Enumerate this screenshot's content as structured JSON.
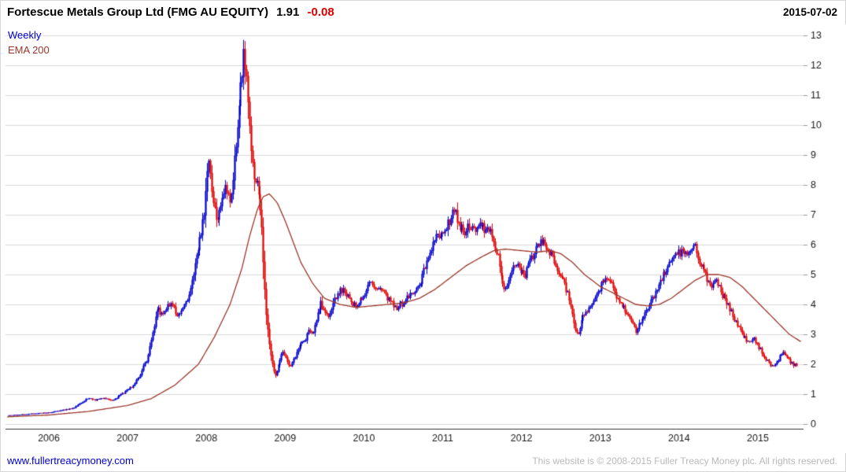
{
  "header": {
    "title": "Fortescue Metals Group Ltd (FMG AU EQUITY)",
    "last_price": "1.91",
    "change": "-0.08",
    "date": "2015-07-02"
  },
  "legend": {
    "series1": "Weekly",
    "series2": "EMA 200"
  },
  "footer": {
    "link": "www.fullertreacymoney.com",
    "copyright": "This website is © 2008-2015 Fuller Treacy Money plc. All rights reserved."
  },
  "colors": {
    "up": "#0000cc",
    "down": "#e00000",
    "ema": "#9a382a",
    "grid": "#d9d9d9",
    "axis": "#333333",
    "tick": "#999999",
    "label": "#1a1a1a"
  },
  "chart_data": {
    "type": "candlestick",
    "title": "Fortescue Metals Group Ltd (FMG AU EQUITY)",
    "frequency": "Weekly",
    "overlay": "EMA 200",
    "last_price": 1.91,
    "change": -0.08,
    "date": "2015-07-02",
    "grid": "horizontal",
    "legend_position": "top-left",
    "axis_labels_position": "right",
    "xlim": [
      2005.45,
      2015.58
    ],
    "ylim": [
      0,
      13
    ],
    "yticks": [
      0,
      1,
      2,
      3,
      4,
      5,
      6,
      7,
      8,
      9,
      10,
      11,
      12,
      13
    ],
    "xticks": [
      2006,
      2007,
      2008,
      2009,
      2010,
      2011,
      2012,
      2013,
      2014,
      2015
    ],
    "series": [
      {
        "name": "Weekly price (approx close keypoints, [year, price])",
        "keypoints": [
          [
            2005.47,
            0.28
          ],
          [
            2005.6,
            0.3
          ],
          [
            2005.75,
            0.33
          ],
          [
            2005.9,
            0.36
          ],
          [
            2006.0,
            0.38
          ],
          [
            2006.15,
            0.45
          ],
          [
            2006.3,
            0.52
          ],
          [
            2006.42,
            0.72
          ],
          [
            2006.5,
            0.88
          ],
          [
            2006.58,
            0.8
          ],
          [
            2006.7,
            0.85
          ],
          [
            2006.8,
            0.78
          ],
          [
            2006.95,
            1.05
          ],
          [
            2007.05,
            1.25
          ],
          [
            2007.15,
            1.6
          ],
          [
            2007.25,
            2.2
          ],
          [
            2007.32,
            3.1
          ],
          [
            2007.38,
            3.9
          ],
          [
            2007.45,
            3.6
          ],
          [
            2007.5,
            3.9
          ],
          [
            2007.55,
            4.1
          ],
          [
            2007.62,
            3.6
          ],
          [
            2007.7,
            3.8
          ],
          [
            2007.78,
            4.3
          ],
          [
            2007.85,
            5.2
          ],
          [
            2007.92,
            6.2
          ],
          [
            2007.97,
            7.0
          ],
          [
            2008.0,
            8.2
          ],
          [
            2008.03,
            8.9
          ],
          [
            2008.08,
            7.6
          ],
          [
            2008.13,
            6.8
          ],
          [
            2008.18,
            7.4
          ],
          [
            2008.25,
            7.9
          ],
          [
            2008.3,
            7.3
          ],
          [
            2008.35,
            8.6
          ],
          [
            2008.4,
            10.2
          ],
          [
            2008.44,
            11.5
          ],
          [
            2008.47,
            12.6
          ],
          [
            2008.5,
            11.8
          ],
          [
            2008.53,
            10.5
          ],
          [
            2008.56,
            9.2
          ],
          [
            2008.6,
            8.3
          ],
          [
            2008.63,
            8.0
          ],
          [
            2008.66,
            7.9
          ],
          [
            2008.7,
            6.5
          ],
          [
            2008.73,
            5.0
          ],
          [
            2008.76,
            3.6
          ],
          [
            2008.8,
            2.6
          ],
          [
            2008.84,
            1.9
          ],
          [
            2008.88,
            1.6
          ],
          [
            2008.92,
            2.1
          ],
          [
            2008.96,
            2.4
          ],
          [
            2009.0,
            2.3
          ],
          [
            2009.05,
            1.9
          ],
          [
            2009.1,
            2.1
          ],
          [
            2009.18,
            2.6
          ],
          [
            2009.25,
            2.8
          ],
          [
            2009.3,
            3.2
          ],
          [
            2009.35,
            3.0
          ],
          [
            2009.4,
            3.6
          ],
          [
            2009.45,
            4.1
          ],
          [
            2009.5,
            3.8
          ],
          [
            2009.55,
            3.6
          ],
          [
            2009.6,
            4.0
          ],
          [
            2009.68,
            4.4
          ],
          [
            2009.75,
            4.5
          ],
          [
            2009.82,
            4.1
          ],
          [
            2009.9,
            3.9
          ],
          [
            2010.0,
            4.3
          ],
          [
            2010.08,
            4.8
          ],
          [
            2010.15,
            4.6
          ],
          [
            2010.25,
            4.4
          ],
          [
            2010.33,
            4.1
          ],
          [
            2010.4,
            3.9
          ],
          [
            2010.48,
            4.0
          ],
          [
            2010.55,
            4.2
          ],
          [
            2010.63,
            4.4
          ],
          [
            2010.7,
            4.6
          ],
          [
            2010.78,
            5.3
          ],
          [
            2010.85,
            5.9
          ],
          [
            2010.92,
            6.3
          ],
          [
            2011.0,
            6.5
          ],
          [
            2011.05,
            6.6
          ],
          [
            2011.1,
            6.9
          ],
          [
            2011.15,
            7.2
          ],
          [
            2011.2,
            6.7
          ],
          [
            2011.27,
            6.4
          ],
          [
            2011.33,
            6.6
          ],
          [
            2011.4,
            6.5
          ],
          [
            2011.45,
            6.8
          ],
          [
            2011.5,
            6.6
          ],
          [
            2011.55,
            6.4
          ],
          [
            2011.6,
            6.5
          ],
          [
            2011.65,
            6.0
          ],
          [
            2011.7,
            5.6
          ],
          [
            2011.75,
            4.9
          ],
          [
            2011.8,
            4.4
          ],
          [
            2011.85,
            5.0
          ],
          [
            2011.9,
            5.4
          ],
          [
            2011.97,
            5.2
          ],
          [
            2012.05,
            5.0
          ],
          [
            2012.12,
            5.5
          ],
          [
            2012.2,
            6.0
          ],
          [
            2012.27,
            6.2
          ],
          [
            2012.33,
            5.9
          ],
          [
            2012.4,
            5.5
          ],
          [
            2012.47,
            5.1
          ],
          [
            2012.55,
            4.6
          ],
          [
            2012.62,
            4.1
          ],
          [
            2012.68,
            3.2
          ],
          [
            2012.72,
            3.0
          ],
          [
            2012.78,
            3.6
          ],
          [
            2012.85,
            3.9
          ],
          [
            2012.92,
            4.1
          ],
          [
            2013.0,
            4.6
          ],
          [
            2013.08,
            4.9
          ],
          [
            2013.15,
            4.6
          ],
          [
            2013.22,
            4.2
          ],
          [
            2013.3,
            3.9
          ],
          [
            2013.38,
            3.5
          ],
          [
            2013.45,
            3.1
          ],
          [
            2013.52,
            3.5
          ],
          [
            2013.6,
            3.9
          ],
          [
            2013.7,
            4.4
          ],
          [
            2013.78,
            4.9
          ],
          [
            2013.85,
            5.3
          ],
          [
            2013.92,
            5.6
          ],
          [
            2014.0,
            5.7
          ],
          [
            2014.05,
            5.9
          ],
          [
            2014.1,
            5.6
          ],
          [
            2014.15,
            5.8
          ],
          [
            2014.2,
            6.0
          ],
          [
            2014.25,
            5.5
          ],
          [
            2014.3,
            5.2
          ],
          [
            2014.35,
            4.9
          ],
          [
            2014.4,
            4.6
          ],
          [
            2014.45,
            4.9
          ],
          [
            2014.5,
            4.6
          ],
          [
            2014.55,
            4.3
          ],
          [
            2014.6,
            4.1
          ],
          [
            2014.65,
            3.8
          ],
          [
            2014.7,
            3.5
          ],
          [
            2014.75,
            3.3
          ],
          [
            2014.8,
            3.0
          ],
          [
            2014.85,
            2.8
          ],
          [
            2014.9,
            2.7
          ],
          [
            2014.95,
            2.9
          ],
          [
            2015.0,
            2.6
          ],
          [
            2015.05,
            2.4
          ],
          [
            2015.1,
            2.2
          ],
          [
            2015.15,
            2.0
          ],
          [
            2015.2,
            1.9
          ],
          [
            2015.25,
            2.1
          ],
          [
            2015.3,
            2.4
          ],
          [
            2015.35,
            2.3
          ],
          [
            2015.4,
            2.1
          ],
          [
            2015.45,
            2.0
          ],
          [
            2015.5,
            1.91
          ]
        ]
      },
      {
        "name": "EMA 200 ([year, value])",
        "keypoints": [
          [
            2005.47,
            0.24
          ],
          [
            2006.0,
            0.3
          ],
          [
            2006.5,
            0.42
          ],
          [
            2007.0,
            0.62
          ],
          [
            2007.3,
            0.85
          ],
          [
            2007.6,
            1.3
          ],
          [
            2007.9,
            2.0
          ],
          [
            2008.1,
            2.9
          ],
          [
            2008.3,
            4.0
          ],
          [
            2008.45,
            5.2
          ],
          [
            2008.55,
            6.3
          ],
          [
            2008.65,
            7.2
          ],
          [
            2008.72,
            7.6
          ],
          [
            2008.8,
            7.7
          ],
          [
            2008.9,
            7.4
          ],
          [
            2009.0,
            6.8
          ],
          [
            2009.1,
            6.1
          ],
          [
            2009.2,
            5.4
          ],
          [
            2009.35,
            4.7
          ],
          [
            2009.5,
            4.2
          ],
          [
            2009.7,
            4.0
          ],
          [
            2009.9,
            3.9
          ],
          [
            2010.1,
            3.95
          ],
          [
            2010.3,
            4.0
          ],
          [
            2010.5,
            4.05
          ],
          [
            2010.7,
            4.2
          ],
          [
            2010.9,
            4.5
          ],
          [
            2011.1,
            4.9
          ],
          [
            2011.3,
            5.3
          ],
          [
            2011.5,
            5.6
          ],
          [
            2011.65,
            5.8
          ],
          [
            2011.8,
            5.85
          ],
          [
            2012.0,
            5.8
          ],
          [
            2012.2,
            5.75
          ],
          [
            2012.35,
            5.8
          ],
          [
            2012.5,
            5.7
          ],
          [
            2012.65,
            5.4
          ],
          [
            2012.8,
            5.0
          ],
          [
            2013.0,
            4.6
          ],
          [
            2013.15,
            4.4
          ],
          [
            2013.3,
            4.2
          ],
          [
            2013.45,
            4.0
          ],
          [
            2013.6,
            3.95
          ],
          [
            2013.75,
            4.0
          ],
          [
            2013.9,
            4.2
          ],
          [
            2014.05,
            4.5
          ],
          [
            2014.2,
            4.8
          ],
          [
            2014.35,
            5.0
          ],
          [
            2014.5,
            5.0
          ],
          [
            2014.65,
            4.9
          ],
          [
            2014.8,
            4.6
          ],
          [
            2014.95,
            4.2
          ],
          [
            2015.1,
            3.8
          ],
          [
            2015.25,
            3.4
          ],
          [
            2015.4,
            3.0
          ],
          [
            2015.55,
            2.75
          ]
        ]
      }
    ]
  }
}
